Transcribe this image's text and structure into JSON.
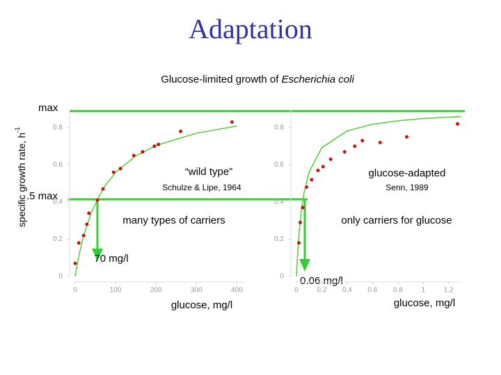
{
  "title": "Adaptation",
  "subtitle": {
    "text": "Glucose-limited growth of ",
    "species": "Escherichia coli"
  },
  "y_axis_label": {
    "text": "specific growth rate, h",
    "superscript": "-1"
  },
  "annotations": {
    "max": "max",
    "half_max": ".5 max",
    "ks_wild": "70 mg/l",
    "ks_adapted": "0.06 mg/l"
  },
  "chart_data": [
    {
      "type": "scatter",
      "title": "“wild type”",
      "source": "Schulze & Lipe, 1964",
      "note": "many types of carriers",
      "xlabel": "glucose, mg/l",
      "xlim": [
        0,
        420
      ],
      "ylim": [
        0,
        0.9
      ],
      "xticks": [
        0,
        100,
        200,
        300,
        400
      ],
      "yticks": [
        0,
        0.2,
        0.4,
        0.6,
        0.8
      ],
      "points": {
        "color": "#cc1111",
        "x": [
          0,
          9,
          21,
          29,
          34,
          55,
          69,
          95,
          112,
          145,
          167,
          196,
          206,
          261,
          388
        ],
        "values": [
          0.07,
          0.18,
          0.22,
          0.28,
          0.34,
          0.41,
          0.47,
          0.56,
          0.58,
          0.65,
          0.67,
          0.7,
          0.71,
          0.78,
          0.83
        ]
      },
      "fit": {
        "color": "#55cc33",
        "x": [
          0,
          5,
          10,
          20,
          40,
          70,
          100,
          150,
          200,
          300,
          400
        ],
        "values": [
          0,
          0.063,
          0.119,
          0.211,
          0.345,
          0.475,
          0.559,
          0.648,
          0.704,
          0.77,
          0.809
        ]
      }
    },
    {
      "type": "scatter",
      "title": "glucose-adapted",
      "source": "Senn, 1989",
      "note": "only carriers for glucose",
      "xlabel": "glucose, mg/l",
      "xlim": [
        0,
        1.3
      ],
      "ylim": [
        0,
        0.9
      ],
      "xticks": [
        0,
        0.2,
        0.4,
        0.6,
        0.8,
        1,
        1.2
      ],
      "yticks": [
        0,
        0.2,
        0.4,
        0.6,
        0.8
      ],
      "points": {
        "color": "#cc1111",
        "x": [
          0.02,
          0.03,
          0.05,
          0.08,
          0.12,
          0.17,
          0.21,
          0.27,
          0.38,
          0.46,
          0.52,
          0.66,
          0.87,
          1.27
        ],
        "values": [
          0.18,
          0.29,
          0.37,
          0.48,
          0.52,
          0.57,
          0.59,
          0.63,
          0.67,
          0.7,
          0.73,
          0.72,
          0.75,
          0.82
        ]
      },
      "fit": {
        "color": "#55cc33",
        "x": [
          0,
          0.01,
          0.02,
          0.04,
          0.06,
          0.1,
          0.2,
          0.4,
          0.6,
          0.8,
          1,
          1.3
        ],
        "values": [
          0,
          0.129,
          0.225,
          0.36,
          0.45,
          0.5625,
          0.692,
          0.783,
          0.818,
          0.837,
          0.849,
          0.86
        ]
      }
    }
  ]
}
